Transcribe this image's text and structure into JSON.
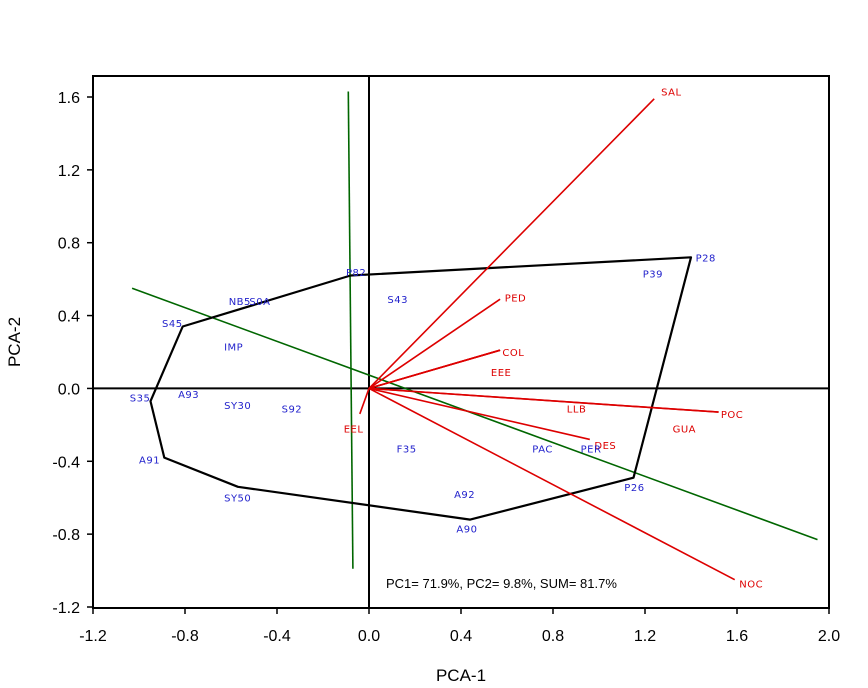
{
  "chart_data": {
    "type": "biplot",
    "xlabel": "PCA-1",
    "ylabel": "PCA-2",
    "xlim": [
      -1.2,
      2.0
    ],
    "ylim": [
      -1.2,
      1.7
    ],
    "xticks": [
      -1.2,
      -0.8,
      -0.4,
      0.0,
      0.4,
      0.8,
      1.2,
      1.6,
      2.0
    ],
    "xtick_labels": [
      "-1.2",
      "-0.8",
      "-0.4",
      "0.0",
      "0.4",
      "0.8",
      "1.2",
      "1.6",
      "2.0"
    ],
    "yticks": [
      -1.2,
      -0.8,
      -0.4,
      0.0,
      0.4,
      0.8,
      1.2,
      1.6
    ],
    "ytick_labels": [
      "-1.2",
      "-0.8",
      "-0.4",
      "0.0",
      "0.4",
      "0.8",
      "1.2",
      "1.6"
    ],
    "annotation": "PC1= 71.9%, PC2= 9.8%, SUM= 81.7%",
    "colors": {
      "points": "#2222cc",
      "vectors": "#dd0000",
      "axes_lines": "#006600",
      "hull": "#000000"
    },
    "green_lines": [
      {
        "x1": -1.03,
        "y1": 0.55,
        "x2": 1.95,
        "y2": -0.83
      },
      {
        "x1": -0.09,
        "y1": 1.63,
        "x2": -0.07,
        "y2": -0.99
      }
    ],
    "hull": [
      {
        "x": -0.08,
        "y": 0.62
      },
      {
        "x": 1.4,
        "y": 0.72
      },
      {
        "x": 1.15,
        "y": -0.49
      },
      {
        "x": 0.44,
        "y": -0.72
      },
      {
        "x": -0.57,
        "y": -0.54
      },
      {
        "x": -0.89,
        "y": -0.38
      },
      {
        "x": -0.95,
        "y": -0.07
      },
      {
        "x": -0.81,
        "y": 0.34
      },
      {
        "x": -0.08,
        "y": 0.62
      }
    ],
    "vectors": [
      {
        "label": "SAL",
        "x": 1.24,
        "y": 1.59,
        "lx": 1.27,
        "ly": 1.63
      },
      {
        "label": "PED",
        "x": 0.57,
        "y": 0.49,
        "lx": 0.59,
        "ly": 0.5
      },
      {
        "label": "COL",
        "x": 0.57,
        "y": 0.21,
        "lx": 0.58,
        "ly": 0.2
      },
      {
        "label": "EEE",
        "x": 0.57,
        "y": 0.21,
        "lx": 0.53,
        "ly": 0.09
      },
      {
        "label": "LLB",
        "x": 0.57,
        "y": 0.21,
        "lx": 0.86,
        "ly": -0.11
      },
      {
        "label": "POC",
        "x": 1.52,
        "y": -0.13,
        "lx": 1.53,
        "ly": -0.14
      },
      {
        "label": "GUA",
        "x": 1.52,
        "y": -0.13,
        "lx": 1.32,
        "ly": -0.22
      },
      {
        "label": "DES",
        "x": 0.96,
        "y": -0.28,
        "lx": 0.98,
        "ly": -0.31
      },
      {
        "label": "NOC",
        "x": 1.59,
        "y": -1.05,
        "lx": 1.61,
        "ly": -1.07
      },
      {
        "label": "EEL",
        "x": -0.04,
        "y": -0.14,
        "lx": -0.11,
        "ly": -0.22
      }
    ],
    "points": [
      {
        "label": "P82",
        "x": -0.1,
        "y": 0.64
      },
      {
        "label": "P28",
        "x": 1.42,
        "y": 0.72
      },
      {
        "label": "P39",
        "x": 1.19,
        "y": 0.63
      },
      {
        "label": "S43",
        "x": 0.08,
        "y": 0.49
      },
      {
        "label": "NB5",
        "x": -0.61,
        "y": 0.48
      },
      {
        "label": "S0A",
        "x": -0.52,
        "y": 0.48
      },
      {
        "label": "S45",
        "x": -0.9,
        "y": 0.36
      },
      {
        "label": "IMP",
        "x": -0.63,
        "y": 0.23
      },
      {
        "label": "S35",
        "x": -1.04,
        "y": -0.05
      },
      {
        "label": "A93",
        "x": -0.83,
        "y": -0.03
      },
      {
        "label": "SY30",
        "x": -0.63,
        "y": -0.09
      },
      {
        "label": "S92",
        "x": -0.38,
        "y": -0.11
      },
      {
        "label": "F35",
        "x": 0.12,
        "y": -0.33
      },
      {
        "label": "PAC",
        "x": 0.71,
        "y": -0.33
      },
      {
        "label": "PER",
        "x": 0.92,
        "y": -0.33
      },
      {
        "label": "A91",
        "x": -1.0,
        "y": -0.39
      },
      {
        "label": "P26",
        "x": 1.11,
        "y": -0.54
      },
      {
        "label": "A92",
        "x": 0.37,
        "y": -0.58
      },
      {
        "label": "SY50",
        "x": -0.63,
        "y": -0.6
      },
      {
        "label": "A90",
        "x": 0.38,
        "y": -0.77
      }
    ]
  }
}
